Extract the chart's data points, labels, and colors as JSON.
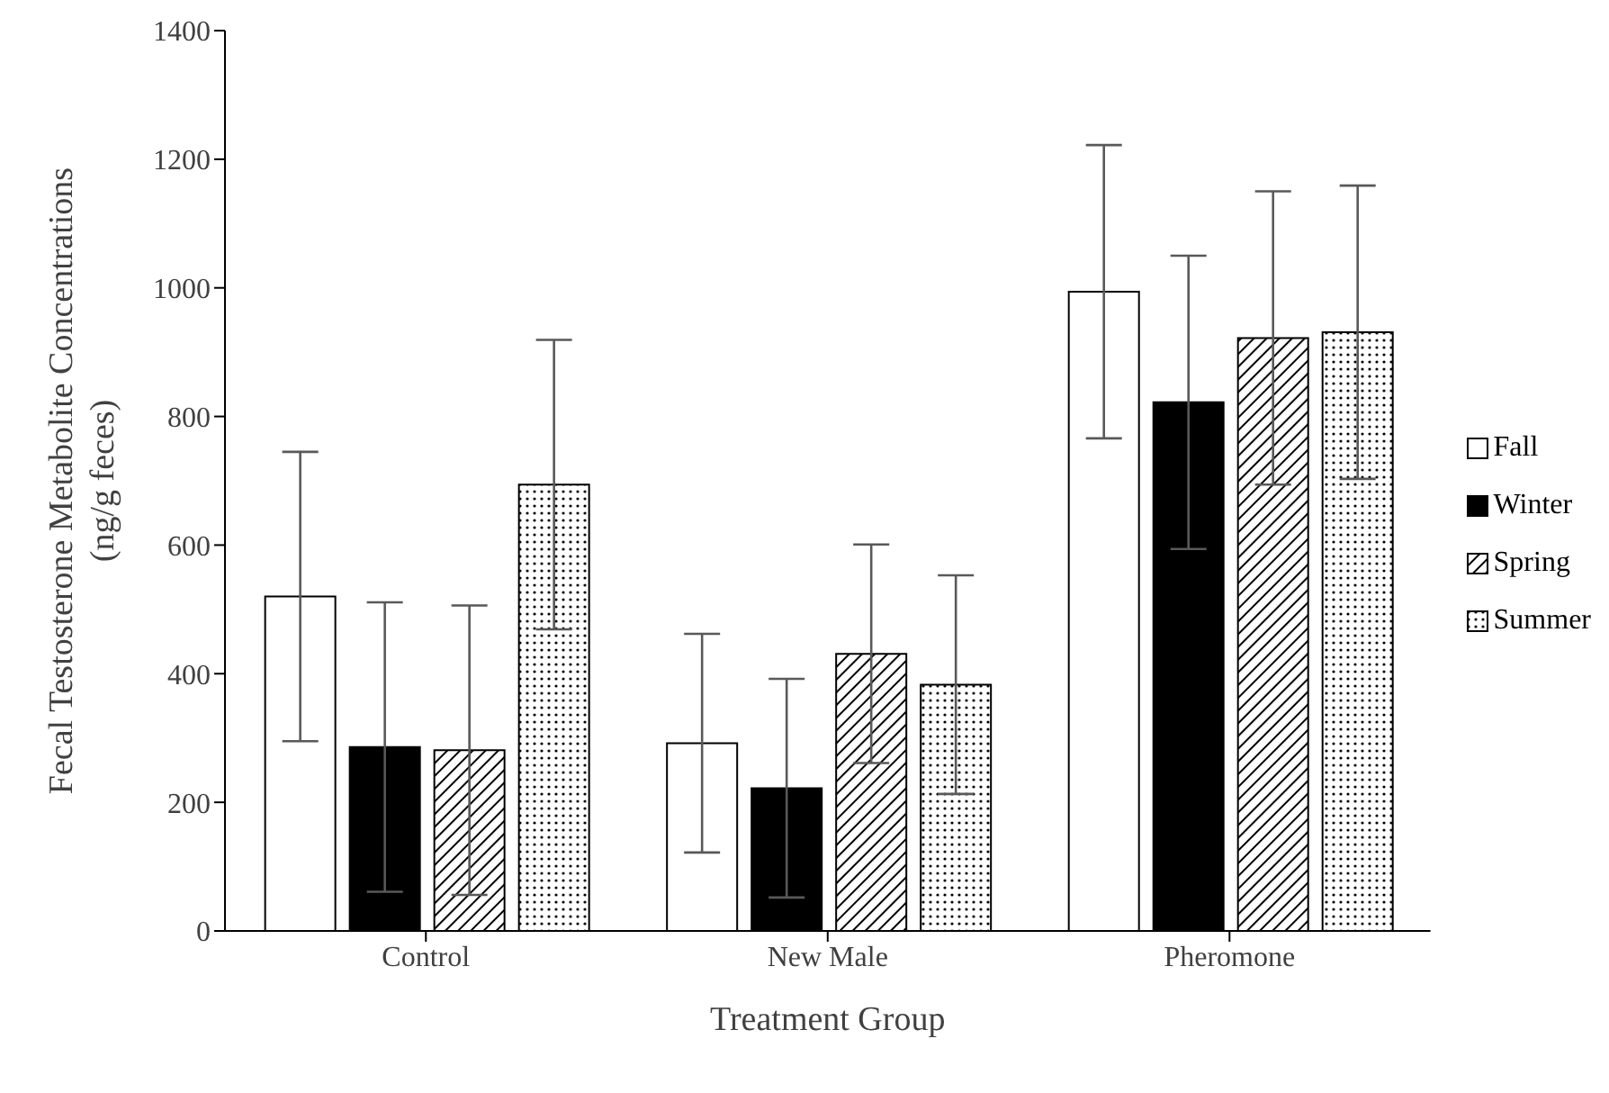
{
  "chart_data": {
    "type": "bar",
    "xlabel": "Treatment Group",
    "ylabel": "Fecal Testosterone Metabolite Concentrations\n(ng/g feces)",
    "categories": [
      "Control",
      "New Male",
      "Pheromone"
    ],
    "series": [
      {
        "name": "Fall",
        "color": "#ffffff",
        "values": [
          520,
          292,
          994
        ],
        "errors": [
          225,
          170,
          228
        ]
      },
      {
        "name": "Winter",
        "color": "#000000",
        "values": [
          286,
          222,
          822
        ],
        "errors": [
          225,
          170,
          228
        ]
      },
      {
        "name": "Spring",
        "color": "#000000",
        "values": [
          281,
          431,
          922
        ],
        "errors": [
          225,
          170,
          228
        ]
      },
      {
        "name": "Summer",
        "color": "#000000",
        "values": [
          694,
          383,
          931
        ],
        "errors": [
          225,
          170,
          228
        ]
      }
    ],
    "ylim": [
      0,
      1400
    ],
    "yticks": [
      0,
      200,
      400,
      600,
      800,
      1000,
      1200,
      1400
    ],
    "grid": false,
    "legend": "right"
  }
}
